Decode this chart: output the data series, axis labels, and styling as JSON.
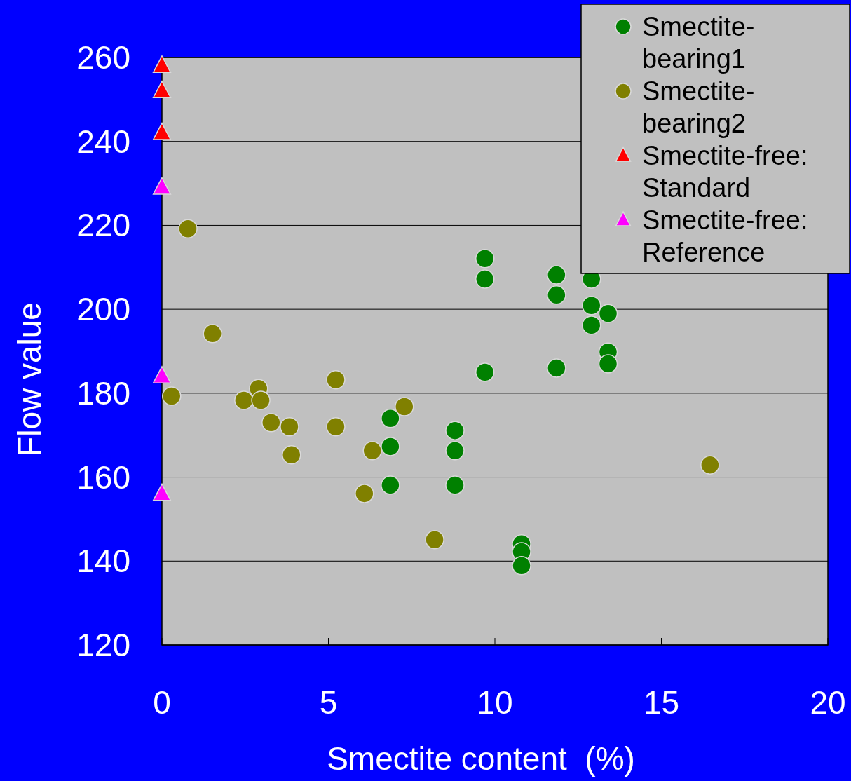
{
  "chart_data": {
    "type": "scatter",
    "xlabel": "Smectite content  (%)",
    "ylabel": "Flow value",
    "xlim": [
      0,
      20
    ],
    "xticks": [
      0,
      5,
      10,
      15,
      20
    ],
    "ylim": [
      120,
      260
    ],
    "yticks": [
      120,
      140,
      160,
      180,
      200,
      220,
      240,
      260
    ],
    "grid": "y",
    "legend": "top right",
    "series": [
      {
        "name": "Smectite-bearing1",
        "color": "#008000",
        "marker": "circle",
        "x": [
          6.86,
          6.86,
          6.86,
          8.8,
          8.8,
          8.8,
          9.7,
          9.7,
          9.7,
          10.8,
          10.8,
          10.8,
          11.85,
          11.85,
          11.85,
          12.9,
          12.9,
          12.9,
          13.4,
          13.4,
          13.4
        ],
        "values": [
          174,
          167.3,
          158.1,
          171.1,
          166.3,
          158.1,
          212.1,
          207.2,
          185,
          144.1,
          142.2,
          138.9,
          208.2,
          203.4,
          186,
          207.2,
          200.9,
          196.2,
          199,
          189.8,
          187
        ]
      },
      {
        "name": "Smectite-bearing2",
        "color": "#808000",
        "marker": "circle",
        "x": [
          0.78,
          1.52,
          0.29,
          2.9,
          2.46,
          2.97,
          3.28,
          3.83,
          3.89,
          5.22,
          5.22,
          7.28,
          6.32,
          6.08,
          8.19,
          16.46
        ],
        "values": [
          219.2,
          194.2,
          179.3,
          181.1,
          178.3,
          178.3,
          173,
          172,
          165.3,
          183.2,
          172,
          176.8,
          166.3,
          156.1,
          145.1,
          162.9
        ]
      },
      {
        "name": "Smectite-free: Standard",
        "color": "#ff0000",
        "marker": "triangle",
        "x": [
          0,
          0,
          0
        ],
        "values": [
          258,
          252,
          242
        ]
      },
      {
        "name": "Smectite-free: Reference",
        "color": "#ff00ff",
        "marker": "triangle",
        "x": [
          0,
          0,
          0
        ],
        "values": [
          229,
          184,
          156
        ]
      }
    ]
  }
}
